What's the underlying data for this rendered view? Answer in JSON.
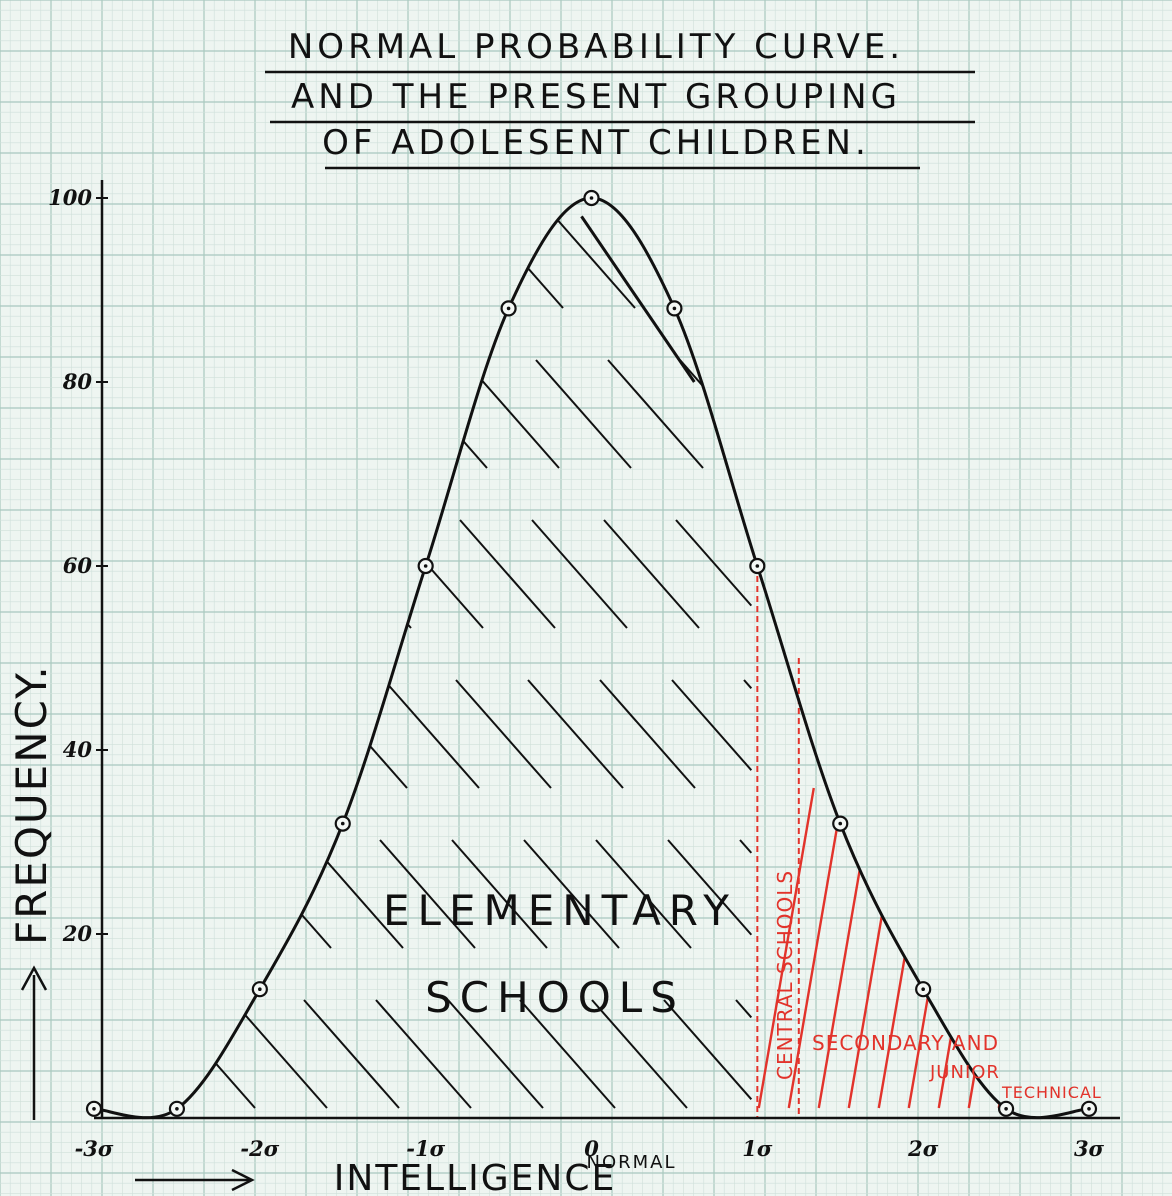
{
  "chart_data": {
    "type": "area",
    "title": [
      "NORMAL PROBABILITY CURVE.",
      "AND THE PRESENT GROUPING",
      "OF ADOLESENT CHILDREN."
    ],
    "xlabel": "INTELLIGENCE",
    "ylabel": "FREQUENCY.",
    "x_ticks": [
      "-3σ",
      "-2σ",
      "-1σ",
      "0",
      "1σ",
      "2σ",
      "3σ"
    ],
    "x_tick_values": [
      -3,
      -2,
      -1,
      0,
      1,
      2,
      3
    ],
    "center_label": "NORMAL",
    "y_ticks": [
      "20",
      "40",
      "60",
      "80",
      "100"
    ],
    "y_tick_values": [
      20,
      40,
      60,
      80,
      100
    ],
    "ylim": [
      0,
      100
    ],
    "xlim": [
      -3,
      3
    ],
    "grid": true,
    "series": [
      {
        "x": [
          -3,
          -2.5,
          -2,
          -1.5,
          -1,
          -0.5,
          0,
          0.5,
          1,
          1.5,
          2,
          2.5,
          3
        ],
        "y": [
          1,
          1,
          14,
          32,
          60,
          88,
          100,
          88,
          60,
          32,
          14,
          1,
          1
        ]
      }
    ],
    "regions": [
      {
        "label": [
          "ELEMENTARY",
          "SCHOOLS"
        ],
        "from": -3,
        "to": 1,
        "color": "#111111"
      },
      {
        "label": "CENTRAL SCHOOLS",
        "from": 1,
        "to": 1.25,
        "color": "#e2332b"
      },
      {
        "label": [
          "SECONDARY AND",
          "JUNIOR",
          "TECHNICAL"
        ],
        "from": 1.25,
        "to": 3,
        "color": "#e2332b"
      }
    ]
  },
  "colors": {
    "paper": "#eef5f1",
    "grid_minor": "#cfe0da",
    "grid_major": "#a9c8bf",
    "ink": "#111111",
    "red": "#e2332b"
  }
}
